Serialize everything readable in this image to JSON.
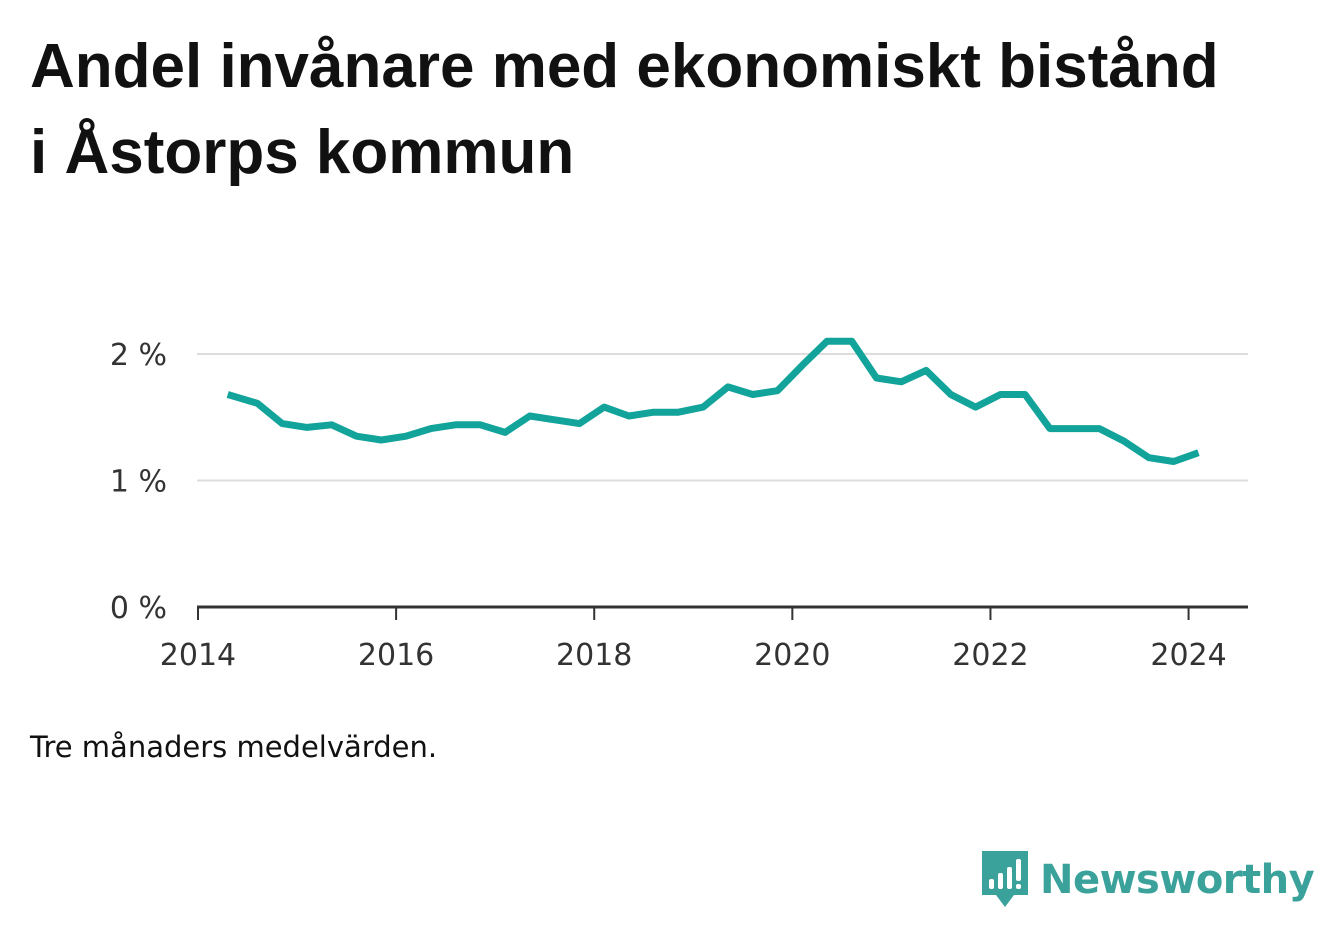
{
  "title": "Andel invånare med ekonomiskt bistånd i Åstorps kommun",
  "footnote": "Tre månaders medelvärden.",
  "brand": {
    "name": "Newsworthy",
    "icon": "bar-chart-speech-bubble-icon",
    "color": "#3aa29a"
  },
  "chart_data": {
    "type": "line",
    "title": "Andel invånare med ekonomiskt bistånd i Åstorps kommun",
    "xlabel": "",
    "ylabel": "",
    "grid": true,
    "line_color": "#12a39a",
    "xlim": [
      2013.99,
      2024.6
    ],
    "ylim": [
      0,
      2
    ],
    "x_ticks": [
      {
        "value": 2014,
        "label": "2014"
      },
      {
        "value": 2016,
        "label": "2016"
      },
      {
        "value": 2018,
        "label": "2018"
      },
      {
        "value": 2020,
        "label": "2020"
      },
      {
        "value": 2022,
        "label": "2022"
      },
      {
        "value": 2024,
        "label": "2024"
      }
    ],
    "y_ticks": [
      {
        "value": 0,
        "label": "0 %"
      },
      {
        "value": 1,
        "label": "1 %"
      },
      {
        "value": 2,
        "label": "2 %"
      }
    ],
    "series": [
      {
        "name": "",
        "points": [
          [
            2014.3,
            1.68
          ],
          [
            2014.6,
            1.61
          ],
          [
            2014.85,
            1.45
          ],
          [
            2015.1,
            1.42
          ],
          [
            2015.35,
            1.44
          ],
          [
            2015.6,
            1.35
          ],
          [
            2015.85,
            1.32
          ],
          [
            2016.1,
            1.35
          ],
          [
            2016.35,
            1.41
          ],
          [
            2016.6,
            1.44
          ],
          [
            2016.85,
            1.44
          ],
          [
            2017.1,
            1.38
          ],
          [
            2017.35,
            1.51
          ],
          [
            2017.6,
            1.48
          ],
          [
            2017.85,
            1.45
          ],
          [
            2018.1,
            1.58
          ],
          [
            2018.35,
            1.51
          ],
          [
            2018.6,
            1.54
          ],
          [
            2018.85,
            1.54
          ],
          [
            2019.1,
            1.58
          ],
          [
            2019.35,
            1.74
          ],
          [
            2019.6,
            1.68
          ],
          [
            2019.85,
            1.71
          ],
          [
            2020.1,
            1.91
          ],
          [
            2020.35,
            2.1
          ],
          [
            2020.6,
            2.1
          ],
          [
            2020.85,
            1.81
          ],
          [
            2021.1,
            1.78
          ],
          [
            2021.35,
            1.87
          ],
          [
            2021.6,
            1.68
          ],
          [
            2021.85,
            1.58
          ],
          [
            2022.1,
            1.68
          ],
          [
            2022.35,
            1.68
          ],
          [
            2022.6,
            1.41
          ],
          [
            2022.85,
            1.41
          ],
          [
            2023.1,
            1.41
          ],
          [
            2023.35,
            1.31
          ],
          [
            2023.6,
            1.18
          ],
          [
            2023.85,
            1.15
          ],
          [
            2024.1,
            1.22
          ]
        ]
      }
    ]
  }
}
